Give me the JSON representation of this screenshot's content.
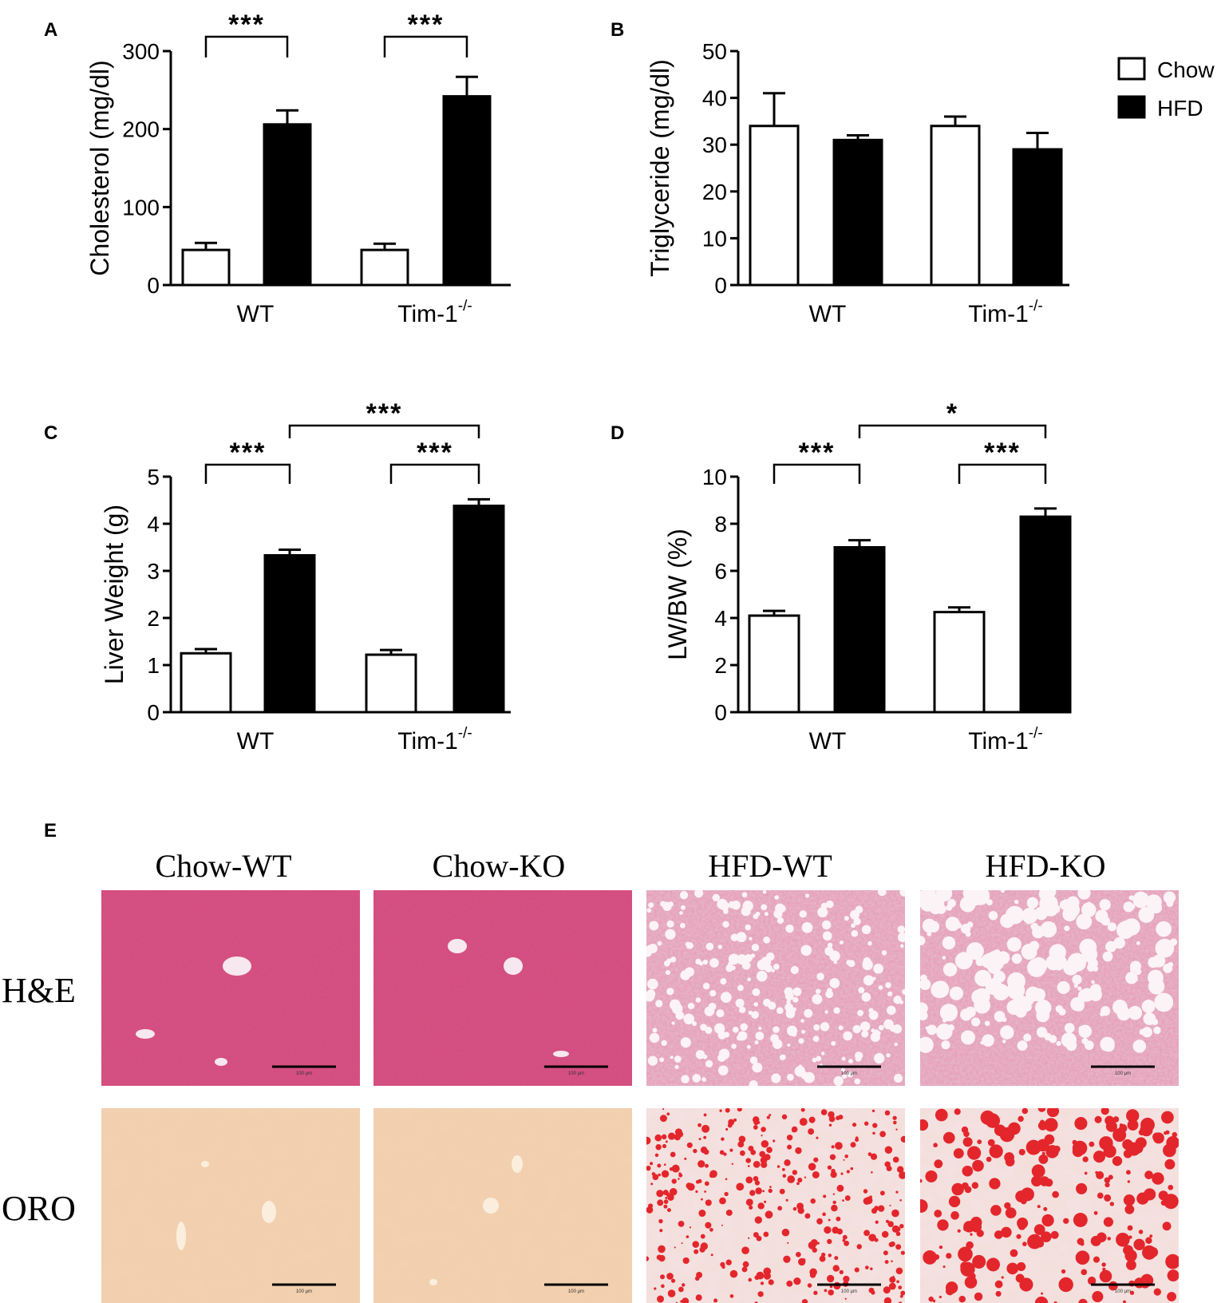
{
  "chart_data": [
    {
      "panel": "A",
      "type": "bar",
      "ylabel": "Cholesterol (mg/dl)",
      "ylim": [
        0,
        300
      ],
      "yticks": [
        0,
        100,
        200,
        300
      ],
      "categories": [
        "WT",
        "Tim-1"
      ],
      "category_superscripts": [
        "",
        "-/-"
      ],
      "series": [
        {
          "name": "Chow",
          "values": [
            45,
            45
          ],
          "errors": [
            9,
            8
          ]
        },
        {
          "name": "HFD",
          "values": [
            206,
            242
          ],
          "errors": [
            18,
            25
          ]
        }
      ],
      "significance": [
        {
          "label": "***",
          "from": [
            0,
            0
          ],
          "to": [
            0,
            1
          ]
        },
        {
          "label": "***",
          "from": [
            1,
            0
          ],
          "to": [
            1,
            1
          ]
        }
      ]
    },
    {
      "panel": "B",
      "type": "bar",
      "ylabel": "Triglyceride (mg/dl)",
      "ylim": [
        0,
        50
      ],
      "yticks": [
        0,
        10,
        20,
        30,
        40,
        50
      ],
      "categories": [
        "WT",
        "Tim-1"
      ],
      "category_superscripts": [
        "",
        "-/-"
      ],
      "series": [
        {
          "name": "Chow",
          "values": [
            34,
            34
          ],
          "errors": [
            7,
            2
          ]
        },
        {
          "name": "HFD",
          "values": [
            31,
            29
          ],
          "errors": [
            1,
            3.5
          ]
        }
      ],
      "legend": {
        "position": "top-right",
        "entries": [
          "Chow",
          "HFD"
        ]
      },
      "significance": []
    },
    {
      "panel": "C",
      "type": "bar",
      "ylabel": "Liver Weight (g)",
      "ylim": [
        0,
        5
      ],
      "yticks": [
        0,
        1,
        2,
        3,
        4,
        5
      ],
      "categories": [
        "WT",
        "Tim-1"
      ],
      "category_superscripts": [
        "",
        "-/-"
      ],
      "series": [
        {
          "name": "Chow",
          "values": [
            1.25,
            1.22
          ],
          "errors": [
            0.09,
            0.1
          ]
        },
        {
          "name": "HFD",
          "values": [
            3.33,
            4.38
          ],
          "errors": [
            0.12,
            0.14
          ]
        }
      ],
      "significance": [
        {
          "label": "***",
          "from": [
            0,
            0
          ],
          "to": [
            0,
            1
          ]
        },
        {
          "label": "***",
          "from": [
            1,
            0
          ],
          "to": [
            1,
            1
          ]
        },
        {
          "label": "***",
          "from": [
            0,
            1
          ],
          "to": [
            1,
            1
          ],
          "level": 2
        }
      ]
    },
    {
      "panel": "D",
      "type": "bar",
      "ylabel": "LW/BW (%)",
      "ylim": [
        0,
        10
      ],
      "yticks": [
        0,
        2,
        4,
        6,
        8,
        10
      ],
      "categories": [
        "WT",
        "Tim-1"
      ],
      "category_superscripts": [
        "",
        "-/-"
      ],
      "series": [
        {
          "name": "Chow",
          "values": [
            4.1,
            4.25
          ],
          "errors": [
            0.2,
            0.2
          ]
        },
        {
          "name": "HFD",
          "values": [
            7.0,
            8.3
          ],
          "errors": [
            0.3,
            0.35
          ]
        }
      ],
      "significance": [
        {
          "label": "***",
          "from": [
            0,
            0
          ],
          "to": [
            0,
            1
          ]
        },
        {
          "label": "***",
          "from": [
            1,
            0
          ],
          "to": [
            1,
            1
          ]
        },
        {
          "label": "*",
          "from": [
            0,
            1
          ],
          "to": [
            1,
            1
          ],
          "level": 2
        }
      ]
    }
  ],
  "panel_e": {
    "letter": "E",
    "columns": [
      "Chow-WT",
      "Chow-KO",
      "HFD-WT",
      "HFD-KO"
    ],
    "rows": [
      "H&E",
      "ORO"
    ],
    "scale_bar_label": "100 μm"
  },
  "colors": {
    "chow_fill": "#ffffff",
    "hfd_fill": "#000000",
    "he_normal": "#d9547e",
    "he_fatty": "#e8b6c6",
    "oro_normal": "#f3d0b0",
    "oro_lipid": "#e3262c",
    "oro_fatty_bg": "#f4e3e5"
  }
}
